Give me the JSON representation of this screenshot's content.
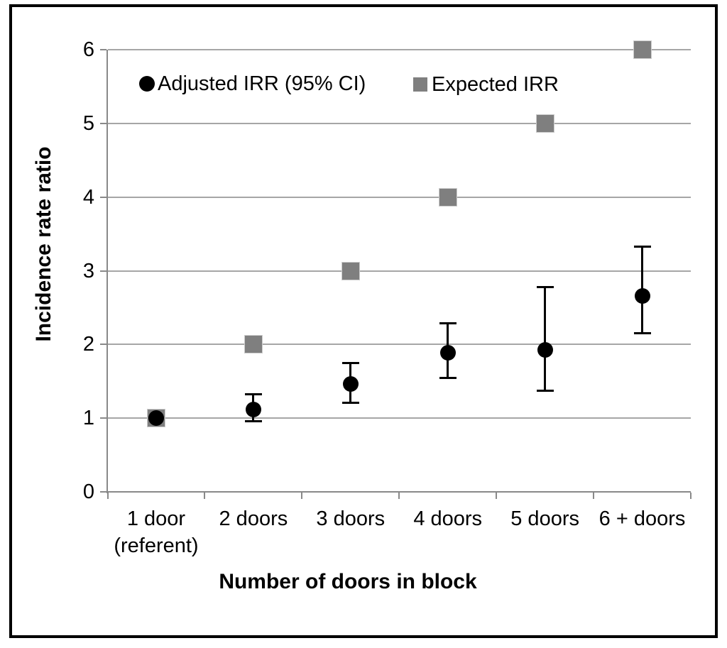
{
  "chart_data": {
    "type": "scatter",
    "title": "",
    "xlabel": "Number of doors in block",
    "ylabel": "Incidence rate ratio",
    "categories": [
      "1 door\n(referent)",
      "2 doors",
      "3 doors",
      "4 doors",
      "5 doors",
      "6 + doors"
    ],
    "yticks": [
      0,
      1,
      2,
      3,
      4,
      5,
      6
    ],
    "ylim": [
      0,
      6
    ],
    "grid": true,
    "legend_position": "top-left-inside",
    "series": [
      {
        "name": "Adjusted IRR (95% CI)",
        "marker": "circle",
        "color": "#000000",
        "values": [
          1.0,
          1.12,
          1.46,
          1.89,
          1.93,
          2.66
        ],
        "ci_low": [
          null,
          0.96,
          1.21,
          1.55,
          1.37,
          2.15
        ],
        "ci_high": [
          null,
          1.32,
          1.75,
          2.29,
          2.78,
          3.33
        ]
      },
      {
        "name": "Expected IRR",
        "marker": "square",
        "color": "#7f7f7f",
        "values": [
          1,
          2,
          3,
          4,
          5,
          6
        ]
      }
    ],
    "colors": {
      "gridline": "#a6a6a6",
      "axis": "#898989",
      "text": "#000000",
      "circle_fill": "#000000",
      "square_fill": "#7f7f7f",
      "square_border": "#cccccc",
      "background": "#ffffff",
      "frame": "#000000"
    }
  }
}
